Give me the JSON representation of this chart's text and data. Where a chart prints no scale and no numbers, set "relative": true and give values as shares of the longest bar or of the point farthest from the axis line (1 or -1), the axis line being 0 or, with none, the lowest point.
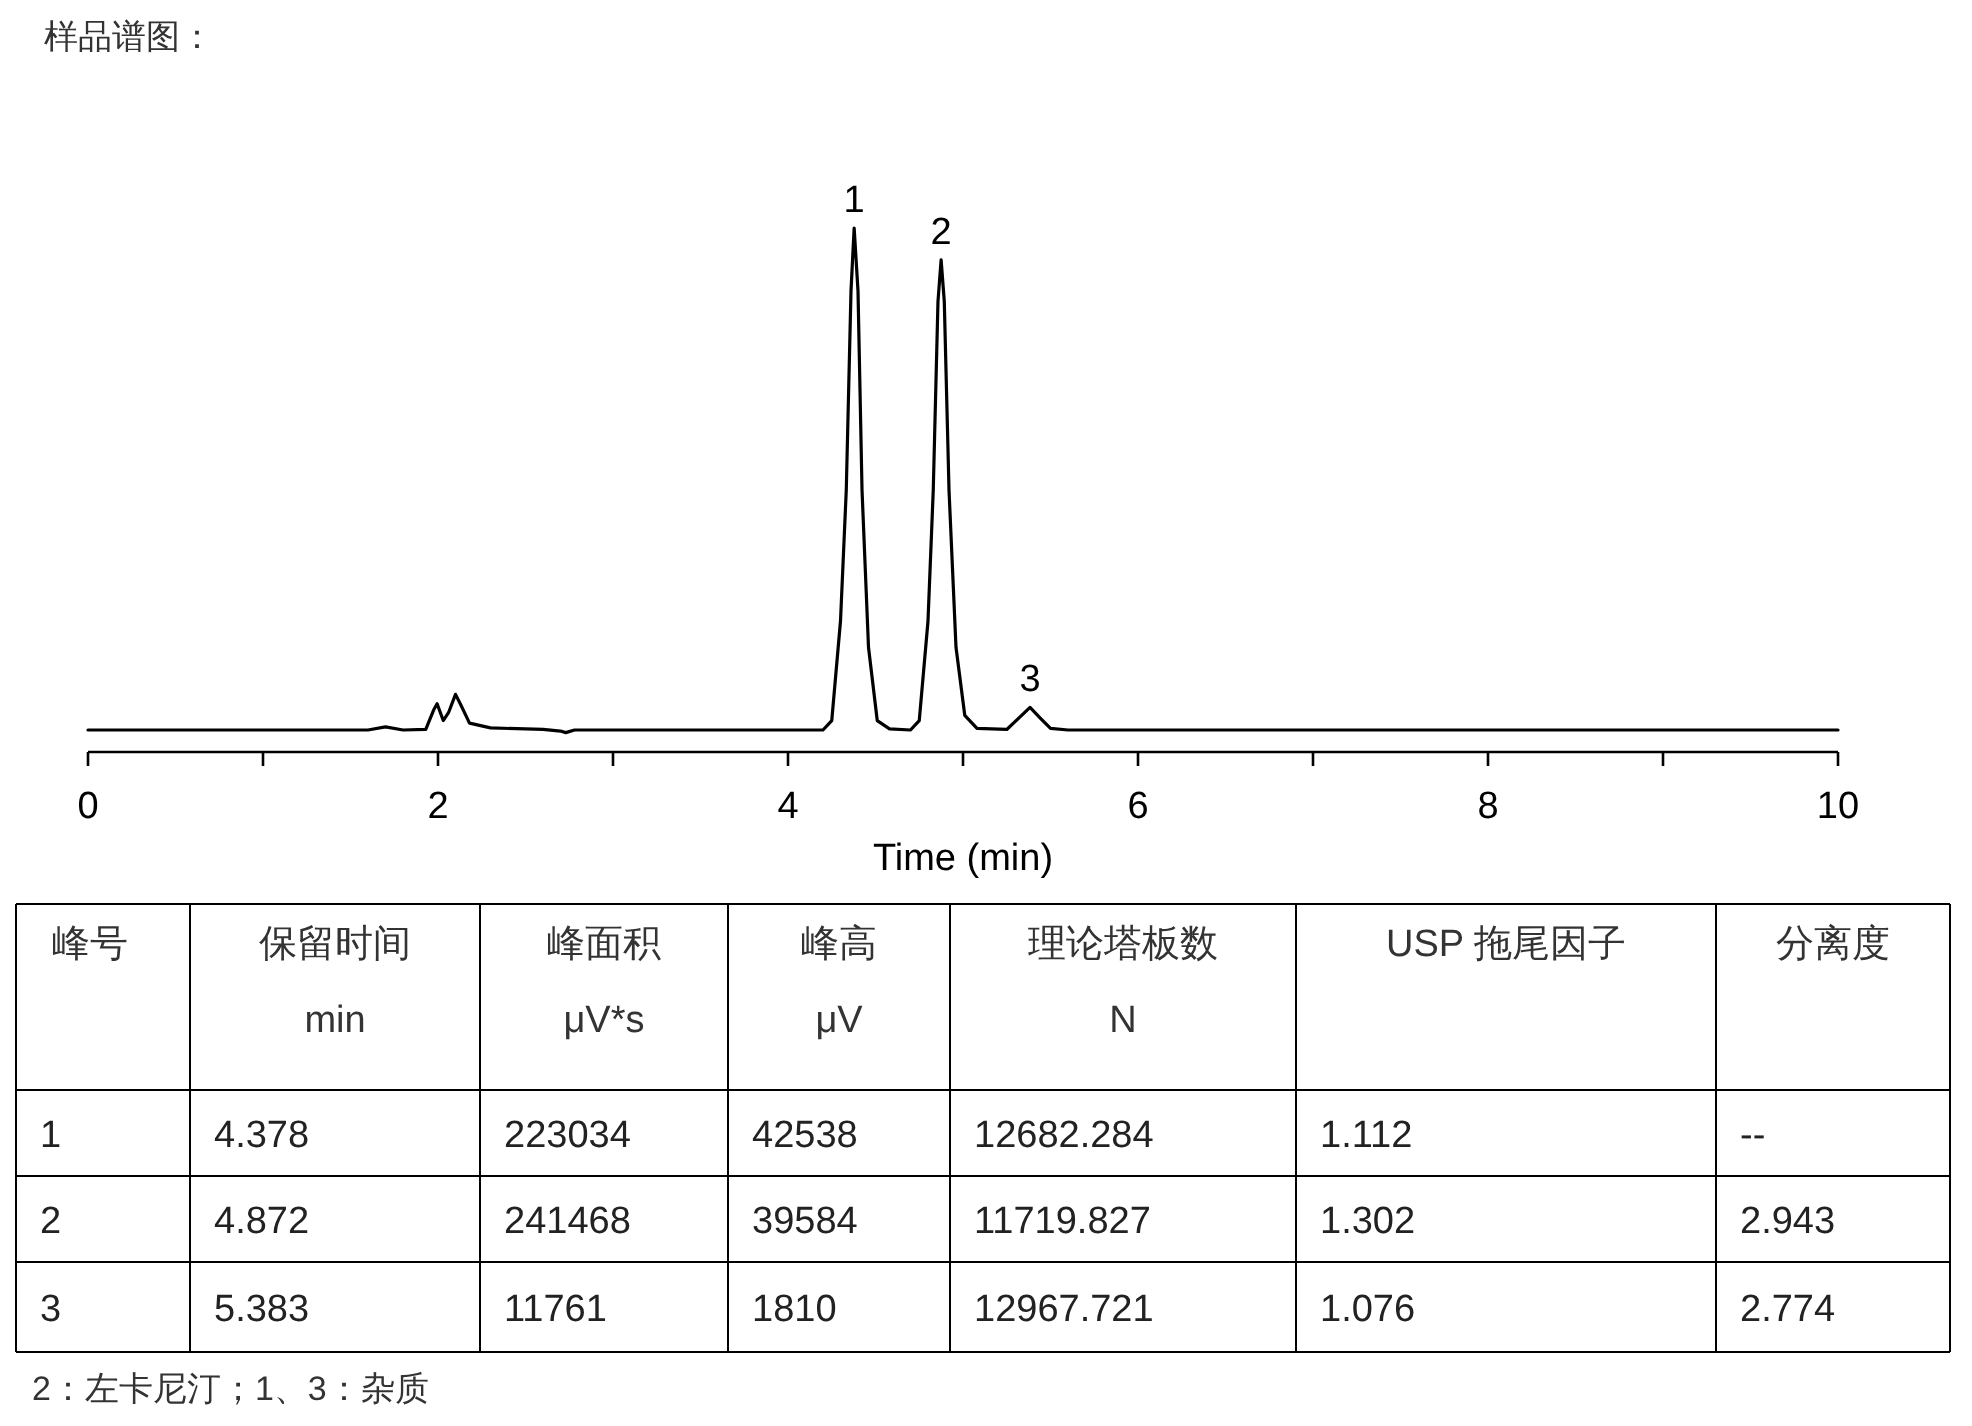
{
  "chart_data": [
    {
      "type": "line",
      "title": "样品谱图：",
      "xlabel": "Time (min)",
      "relative": true,
      "xlim": [
        0,
        10
      ],
      "xticks": [
        0,
        {
          "value": 1,
          "label": null
        },
        2,
        {
          "value": 3,
          "label": null
        },
        4,
        {
          "value": 5,
          "label": null
        },
        6,
        {
          "value": 7,
          "label": null
        },
        8,
        {
          "value": 9,
          "label": null
        },
        10
      ],
      "series": [
        {
          "color": "#000000",
          "x": [
            0,
            1.6,
            1.7,
            1.8,
            1.93,
            1.975,
            1.995,
            2.03,
            2.06,
            2.1,
            2.13,
            2.18,
            2.3,
            2.6,
            2.7,
            2.73,
            2.78,
            4.2,
            4.25,
            4.3,
            4.333,
            4.36,
            4.378,
            4.4,
            4.423,
            4.46,
            4.51,
            4.58,
            4.7,
            4.75,
            4.8,
            4.83,
            4.857,
            4.875,
            4.893,
            4.92,
            4.96,
            5.01,
            5.08,
            5.25,
            5.32,
            5.383,
            5.44,
            5.5,
            5.6,
            10
          ],
          "values": [
            0.042,
            0.042,
            0.048,
            0.042,
            0.043,
            0.08,
            0.092,
            0.06,
            0.075,
            0.11,
            0.09,
            0.055,
            0.046,
            0.043,
            0.04,
            0.037,
            0.042,
            0.042,
            0.06,
            0.25,
            0.5,
            0.88,
            1.0,
            0.88,
            0.5,
            0.2,
            0.06,
            0.044,
            0.042,
            0.06,
            0.25,
            0.5,
            0.86,
            0.939,
            0.86,
            0.5,
            0.2,
            0.07,
            0.045,
            0.043,
            0.065,
            0.085,
            0.065,
            0.045,
            0.042,
            0.042
          ]
        }
      ],
      "annotations": [
        {
          "text": "1",
          "x": 4.378,
          "y": 1.0
        },
        {
          "text": "2",
          "x": 4.875,
          "y": 0.939
        },
        {
          "text": "3",
          "x": 5.383,
          "y": 0.085
        }
      ]
    },
    {
      "type": "other",
      "categories": [
        "峰号",
        "保留时间\nmin",
        "峰面积\nμV*s",
        "峰高\nμV",
        "理论塔板数\nN",
        "USP 拖尾因子",
        "分离度"
      ],
      "cell_labels": [
        [
          "1",
          "4.378",
          "223034",
          "42538",
          "12682.284",
          "1.112",
          "--"
        ],
        [
          "2",
          "4.872",
          "241468",
          "39584",
          "11719.827",
          "1.302",
          "2.943"
        ],
        [
          "3",
          "5.383",
          "11761",
          "1810",
          "12967.721",
          "1.076",
          "2.774"
        ]
      ],
      "annotations": [
        "2：左卡尼汀；1、3：杂质"
      ]
    }
  ]
}
